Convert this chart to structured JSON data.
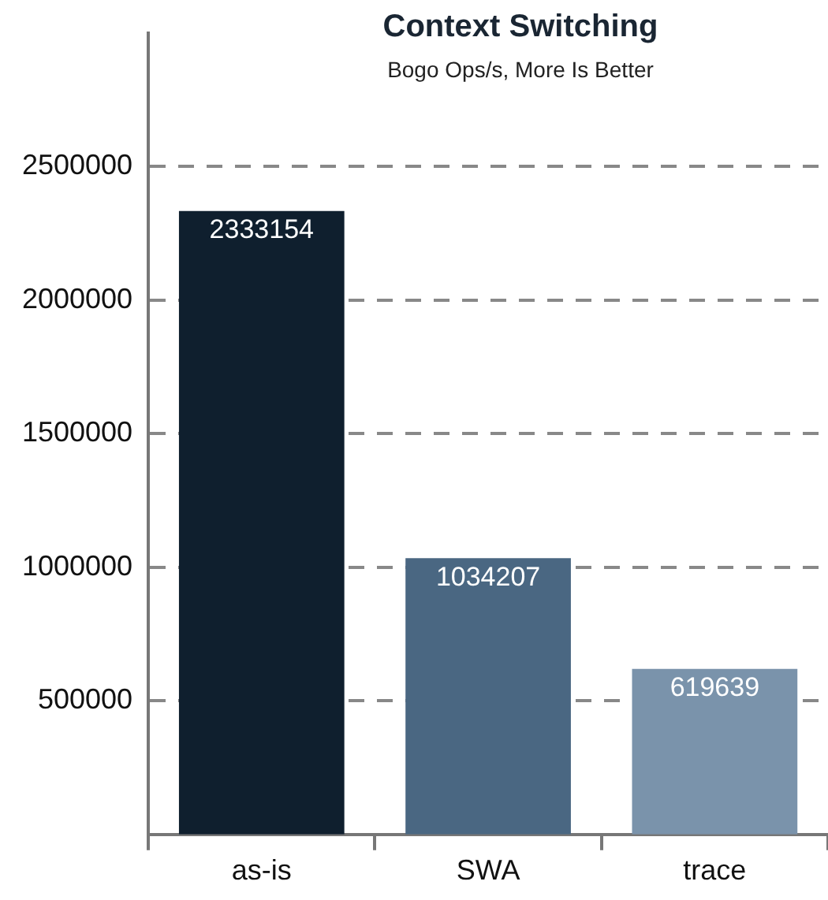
{
  "chart_data": {
    "type": "bar",
    "title": "Context Switching",
    "subtitle": "Bogo Ops/s, More Is Better",
    "categories": [
      "as-is",
      "SWA",
      "trace"
    ],
    "values": [
      2333154,
      1034207,
      619639
    ],
    "colors": [
      "#0f1f2e",
      "#4a6782",
      "#7a93ab"
    ],
    "ylim": [
      0,
      3000000
    ],
    "yticks": [
      500000,
      1000000,
      1500000,
      2000000,
      2500000
    ],
    "grid": "y",
    "data_labels": true,
    "legend": false
  }
}
